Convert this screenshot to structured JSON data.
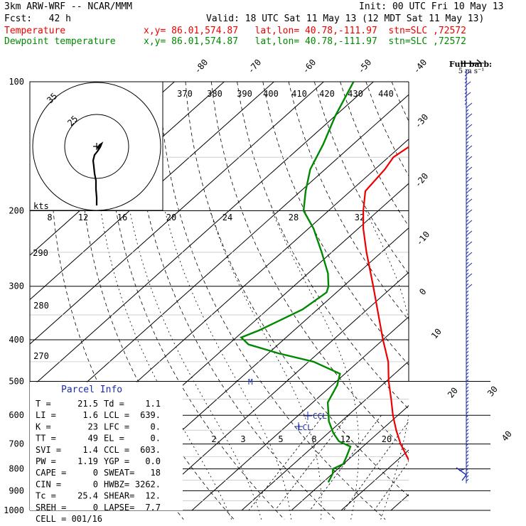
{
  "header": {
    "model": "3km ARW-WRF -- NCAR/MMM",
    "init": "Init: 00 UTC Fri 10 May 13",
    "fcst": "Fcst:   42 h",
    "valid": "Valid: 18 UTC Sat 11 May 13 (12 MDT Sat 11 May 13)",
    "temp_label": "Temperature",
    "temp_loc": "x,y= 86.01,574.87   lat,lon= 40.78,-111.97  stn=SLC ,72572",
    "dew_label": "Dewpoint temperature",
    "dew_loc": "x,y= 86.01,574.87   lat,lon= 40.78,-111.97  stn=SLC ,72572"
  },
  "colors": {
    "temperature": "#ee0000",
    "dewpoint": "#008800",
    "wind": "#1a2ab0",
    "grid": "#000000"
  },
  "chart_data": {
    "type": "skew-t log-p sounding",
    "pressure_levels": [
      "100",
      "200",
      "300",
      "400",
      "500",
      "600",
      "700",
      "800",
      "900",
      "1000"
    ],
    "isotherm_labels": [
      "-80",
      "-70",
      "-60",
      "-50",
      "-40",
      "-30",
      "-20",
      "-10",
      "0",
      "10",
      "20",
      "30",
      "40"
    ],
    "theta_labels": [
      "370",
      "380",
      "390",
      "400",
      "410",
      "420",
      "430",
      "440"
    ],
    "theta_left_labels": [
      "290",
      "280",
      "270"
    ],
    "mixing_ratio_labels": [
      "2",
      "3",
      "5",
      "8",
      "12",
      "20"
    ],
    "hodograph": {
      "ring_labels": [
        "25",
        "35"
      ],
      "units_label": "kts",
      "axis_labels": [
        "8",
        "12",
        "16",
        "20",
        "24",
        "28",
        "32"
      ]
    },
    "wind_barb_label": "Full barb:",
    "wind_barb_unit": "5 m s⁻¹",
    "markers": {
      "lcl": "LCL",
      "ccl": "CCL",
      "mean": "M"
    },
    "temperature_profile": [
      {
        "p": 860,
        "t": 21.5
      },
      {
        "p": 820,
        "t": 17
      },
      {
        "p": 800,
        "t": 15
      },
      {
        "p": 760,
        "t": 12
      },
      {
        "p": 700,
        "t": 7
      },
      {
        "p": 650,
        "t": 3
      },
      {
        "p": 600,
        "t": -1
      },
      {
        "p": 550,
        "t": -5
      },
      {
        "p": 500,
        "t": -9.5
      },
      {
        "p": 450,
        "t": -14
      },
      {
        "p": 400,
        "t": -20
      },
      {
        "p": 350,
        "t": -26.5
      },
      {
        "p": 300,
        "t": -34
      },
      {
        "p": 250,
        "t": -43
      },
      {
        "p": 220,
        "t": -49
      },
      {
        "p": 200,
        "t": -53
      },
      {
        "p": 180,
        "t": -57
      },
      {
        "p": 160,
        "t": -58
      },
      {
        "p": 150,
        "t": -59
      },
      {
        "p": 130,
        "t": -57
      },
      {
        "p": 115,
        "t": -54
      },
      {
        "p": 100,
        "t": -52
      }
    ],
    "dewpoint_profile": [
      {
        "p": 860,
        "t": 1.1
      },
      {
        "p": 820,
        "t": 0
      },
      {
        "p": 800,
        "t": -1
      },
      {
        "p": 780,
        "t": 0
      },
      {
        "p": 750,
        "t": -1
      },
      {
        "p": 710,
        "t": -2.5
      },
      {
        "p": 690,
        "t": -6
      },
      {
        "p": 660,
        "t": -9
      },
      {
        "p": 620,
        "t": -12.5
      },
      {
        "p": 560,
        "t": -17
      },
      {
        "p": 510,
        "t": -19
      },
      {
        "p": 480,
        "t": -21
      },
      {
        "p": 450,
        "t": -29
      },
      {
        "p": 430,
        "t": -38
      },
      {
        "p": 410,
        "t": -46
      },
      {
        "p": 395,
        "t": -49
      },
      {
        "p": 380,
        "t": -47
      },
      {
        "p": 340,
        "t": -43
      },
      {
        "p": 310,
        "t": -42
      },
      {
        "p": 300,
        "t": -43
      },
      {
        "p": 280,
        "t": -46
      },
      {
        "p": 250,
        "t": -52
      },
      {
        "p": 220,
        "t": -59
      },
      {
        "p": 200,
        "t": -65
      },
      {
        "p": 180,
        "t": -69
      },
      {
        "p": 160,
        "t": -73
      },
      {
        "p": 140,
        "t": -76
      },
      {
        "p": 120,
        "t": -80
      },
      {
        "p": 100,
        "t": -84
      }
    ],
    "parcel_info": {
      "title": "Parcel Info",
      "rows": [
        [
          "T   =",
          "21.5",
          "Td  =",
          "1.1"
        ],
        [
          "LI  =",
          "1.6",
          "LCL =",
          "639."
        ],
        [
          "K   =",
          "23",
          "LFC =",
          "0."
        ],
        [
          "TT  =",
          "49",
          "EL  =",
          "0."
        ],
        [
          "SVI =",
          "1.4",
          "CCL =",
          "603."
        ],
        [
          "PW  =",
          "1.19",
          "YGP =",
          "0.0"
        ],
        [
          "CAPE =",
          "0",
          "SWEAT=",
          "18"
        ],
        [
          "CIN  =",
          "0",
          "HWBZ=",
          "3262."
        ],
        [
          "Tc  =",
          "25.4",
          "SHEAR=",
          "12."
        ],
        [
          "SREH =",
          "0",
          "LAPSE=",
          "7.7"
        ]
      ],
      "cell": "CELL = 001/16"
    }
  }
}
